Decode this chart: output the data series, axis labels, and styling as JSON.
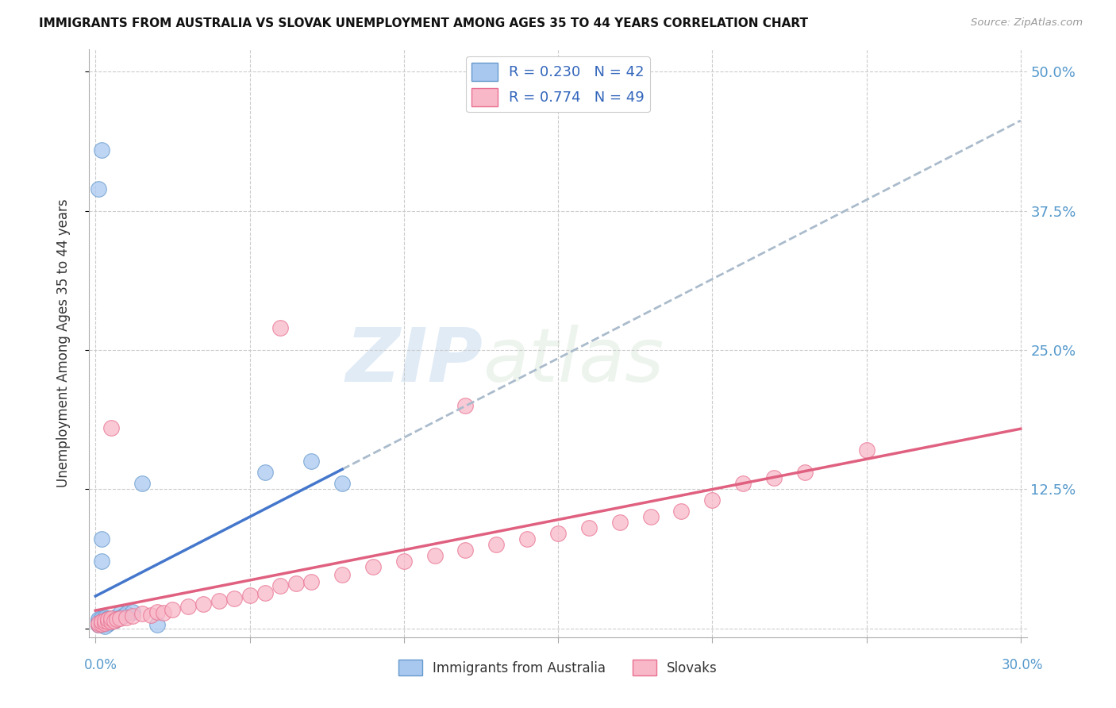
{
  "title": "IMMIGRANTS FROM AUSTRALIA VS SLOVAK UNEMPLOYMENT AMONG AGES 35 TO 44 YEARS CORRELATION CHART",
  "source": "Source: ZipAtlas.com",
  "ylabel": "Unemployment Among Ages 35 to 44 years",
  "xlim": [
    0,
    0.3
  ],
  "ylim": [
    -0.008,
    0.52
  ],
  "yticks": [
    0.0,
    0.125,
    0.25,
    0.375,
    0.5
  ],
  "ytick_labels": [
    "",
    "12.5%",
    "25.0%",
    "37.5%",
    "50.0%"
  ],
  "grid_color": "#cccccc",
  "background_color": "#ffffff",
  "blue_R": 0.23,
  "blue_N": 42,
  "pink_R": 0.774,
  "pink_N": 49,
  "blue_dot_color": "#A8C8F0",
  "blue_dot_edge": "#6699CC",
  "pink_dot_color": "#F8B8C8",
  "pink_dot_edge": "#E87090",
  "blue_line_color": "#4477CC",
  "pink_line_color": "#E06080",
  "gray_dash_color": "#AABBCC",
  "blue_scatter_x": [
    0.001,
    0.001,
    0.001,
    0.001,
    0.001,
    0.001,
    0.002,
    0.002,
    0.002,
    0.002,
    0.002,
    0.002,
    0.003,
    0.003,
    0.003,
    0.003,
    0.003,
    0.004,
    0.004,
    0.004,
    0.004,
    0.005,
    0.005,
    0.006,
    0.006,
    0.007,
    0.008,
    0.008,
    0.009,
    0.01,
    0.012,
    0.015,
    0.02,
    0.055,
    0.07,
    0.08,
    0.002,
    0.001,
    0.003,
    0.002,
    0.002,
    0.001
  ],
  "blue_scatter_y": [
    0.003,
    0.004,
    0.005,
    0.006,
    0.007,
    0.008,
    0.003,
    0.004,
    0.005,
    0.006,
    0.007,
    0.009,
    0.004,
    0.005,
    0.006,
    0.008,
    0.01,
    0.004,
    0.005,
    0.007,
    0.009,
    0.006,
    0.008,
    0.007,
    0.01,
    0.008,
    0.01,
    0.013,
    0.011,
    0.013,
    0.015,
    0.13,
    0.003,
    0.14,
    0.15,
    0.13,
    0.08,
    0.003,
    0.002,
    0.06,
    0.43,
    0.395
  ],
  "pink_scatter_x": [
    0.001,
    0.001,
    0.002,
    0.002,
    0.003,
    0.003,
    0.004,
    0.004,
    0.005,
    0.005,
    0.006,
    0.007,
    0.008,
    0.01,
    0.012,
    0.015,
    0.018,
    0.02,
    0.022,
    0.025,
    0.03,
    0.035,
    0.04,
    0.045,
    0.05,
    0.055,
    0.06,
    0.065,
    0.07,
    0.08,
    0.09,
    0.1,
    0.11,
    0.12,
    0.13,
    0.14,
    0.15,
    0.16,
    0.17,
    0.18,
    0.19,
    0.2,
    0.21,
    0.22,
    0.23,
    0.25,
    0.005,
    0.12,
    0.06
  ],
  "pink_scatter_y": [
    0.003,
    0.005,
    0.004,
    0.006,
    0.005,
    0.007,
    0.006,
    0.008,
    0.006,
    0.009,
    0.007,
    0.008,
    0.009,
    0.01,
    0.011,
    0.013,
    0.012,
    0.015,
    0.014,
    0.017,
    0.02,
    0.022,
    0.025,
    0.027,
    0.03,
    0.032,
    0.038,
    0.04,
    0.042,
    0.048,
    0.055,
    0.06,
    0.065,
    0.07,
    0.075,
    0.08,
    0.085,
    0.09,
    0.095,
    0.1,
    0.105,
    0.115,
    0.13,
    0.135,
    0.14,
    0.16,
    0.18,
    0.2,
    0.27
  ],
  "watermark_text": "ZIPatlas"
}
